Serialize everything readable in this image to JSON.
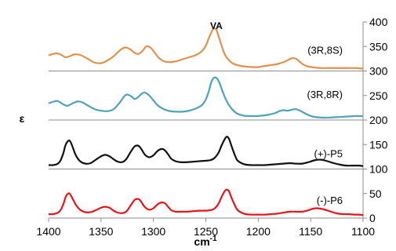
{
  "chart_data": {
    "type": "line",
    "title": "",
    "xlabel": "cm",
    "xlabel_superscript": "-1",
    "ylabel": "ε",
    "xlim": [
      1400,
      1100
    ],
    "ylim": [
      0,
      400
    ],
    "x_reversed": true,
    "x_ticks": [
      "1400",
      "1350",
      "1300",
      "1250",
      "1200",
      "1150",
      "1100"
    ],
    "y_ticks": [
      "0",
      "50",
      "100",
      "150",
      "200",
      "250",
      "300",
      "350",
      "400"
    ],
    "gridlines_y": [
      100,
      200,
      300
    ],
    "annotation": "VA",
    "annotation_x": 1240,
    "series": [
      {
        "name": "(3R,8S)",
        "color": "#e0914f",
        "x": [
          1400,
          1397,
          1392,
          1388,
          1384,
          1380,
          1375,
          1369,
          1362,
          1356,
          1350,
          1345,
          1338,
          1332,
          1327,
          1322,
          1318,
          1314,
          1310,
          1307,
          1303,
          1299,
          1295,
          1290,
          1284,
          1278,
          1272,
          1266,
          1260,
          1254,
          1250,
          1247,
          1244,
          1242,
          1240,
          1238,
          1235,
          1232,
          1228,
          1224,
          1218,
          1212,
          1206,
          1200,
          1194,
          1188,
          1182,
          1176,
          1172,
          1168,
          1164,
          1160,
          1156,
          1152,
          1146,
          1140,
          1132,
          1124,
          1116,
          1108,
          1100
        ],
        "y": [
          332,
          334,
          336,
          333,
          328,
          330,
          334,
          332,
          324,
          317,
          316,
          320,
          330,
          342,
          348,
          344,
          337,
          335,
          342,
          350,
          348,
          338,
          327,
          320,
          318,
          320,
          324,
          328,
          332,
          340,
          352,
          368,
          382,
          387,
          384,
          372,
          352,
          334,
          322,
          315,
          311,
          309,
          308,
          308,
          310,
          312,
          314,
          318,
          322,
          326,
          325,
          318,
          312,
          309,
          307,
          306,
          306,
          306,
          306,
          306,
          305
        ]
      },
      {
        "name": "(3R,8R)",
        "color": "#4fa3b8",
        "x": [
          1400,
          1396,
          1392,
          1389,
          1386,
          1382,
          1377,
          1372,
          1368,
          1362,
          1356,
          1350,
          1344,
          1338,
          1332,
          1328,
          1325,
          1321,
          1318,
          1315,
          1311,
          1308,
          1304,
          1300,
          1296,
          1290,
          1284,
          1278,
          1272,
          1266,
          1260,
          1254,
          1250,
          1247,
          1245,
          1243,
          1240,
          1237,
          1234,
          1230,
          1225,
          1220,
          1214,
          1208,
          1202,
          1196,
          1190,
          1184,
          1180,
          1176,
          1172,
          1168,
          1164,
          1160,
          1154,
          1148,
          1140,
          1132,
          1124,
          1116,
          1108,
          1104,
          1100
        ],
        "y": [
          234,
          237,
          239,
          236,
          232,
          229,
          234,
          238,
          236,
          229,
          222,
          219,
          218,
          222,
          236,
          248,
          252,
          248,
          243,
          246,
          254,
          256,
          250,
          240,
          230,
          222,
          218,
          217,
          217,
          219,
          223,
          230,
          242,
          260,
          276,
          285,
          286,
          276,
          258,
          238,
          222,
          213,
          209,
          208,
          208,
          209,
          211,
          214,
          218,
          220,
          219,
          221,
          222,
          219,
          212,
          207,
          205,
          205,
          206,
          207,
          208,
          208,
          208
        ]
      },
      {
        "name": "(+)-P5",
        "color": "#111111",
        "x": [
          1400,
          1396,
          1392,
          1389,
          1386,
          1384,
          1382,
          1380,
          1378,
          1374,
          1370,
          1365,
          1360,
          1355,
          1350,
          1346,
          1342,
          1338,
          1334,
          1330,
          1326,
          1322,
          1318,
          1315,
          1313,
          1311,
          1308,
          1304,
          1300,
          1296,
          1292,
          1289,
          1286,
          1283,
          1279,
          1274,
          1268,
          1262,
          1256,
          1250,
          1246,
          1242,
          1238,
          1235,
          1232,
          1230,
          1228,
          1226,
          1223,
          1220,
          1216,
          1212,
          1206,
          1200,
          1194,
          1188,
          1182,
          1176,
          1170,
          1164,
          1158,
          1152,
          1146,
          1140,
          1134,
          1128,
          1122,
          1116,
          1110,
          1104,
          1100
        ],
        "y": [
          108,
          108,
          110,
          116,
          132,
          148,
          156,
          158,
          150,
          128,
          116,
          111,
          112,
          119,
          126,
          129,
          126,
          120,
          115,
          114,
          120,
          134,
          146,
          148,
          145,
          139,
          129,
          124,
          128,
          137,
          141,
          138,
          130,
          121,
          116,
          114,
          114,
          115,
          116,
          117,
          118,
          122,
          133,
          148,
          161,
          166,
          162,
          150,
          132,
          118,
          112,
          109,
          108,
          108,
          108,
          109,
          110,
          111,
          112,
          111,
          111,
          114,
          118,
          119,
          116,
          112,
          109,
          107,
          107,
          107,
          106
        ]
      },
      {
        "name": "(-)-P6",
        "color": "#e8141c",
        "x": [
          1400,
          1396,
          1392,
          1389,
          1386,
          1384,
          1382,
          1380,
          1378,
          1374,
          1370,
          1365,
          1360,
          1355,
          1350,
          1346,
          1342,
          1338,
          1334,
          1330,
          1326,
          1322,
          1318,
          1315,
          1313,
          1311,
          1308,
          1304,
          1300,
          1296,
          1292,
          1289,
          1286,
          1283,
          1279,
          1274,
          1268,
          1262,
          1256,
          1250,
          1246,
          1242,
          1238,
          1235,
          1232,
          1230,
          1228,
          1226,
          1223,
          1220,
          1216,
          1212,
          1206,
          1200,
          1194,
          1188,
          1182,
          1176,
          1170,
          1164,
          1158,
          1152,
          1148,
          1144,
          1138,
          1132,
          1126,
          1120,
          1114,
          1108,
          1104,
          1100
        ],
        "y": [
          8,
          8,
          10,
          15,
          28,
          42,
          49,
          50,
          43,
          27,
          17,
          12,
          12,
          16,
          21,
          23,
          21,
          15,
          11,
          10,
          13,
          25,
          37,
          39,
          37,
          31,
          22,
          17,
          20,
          28,
          32,
          30,
          23,
          16,
          13,
          13,
          13,
          14,
          15,
          15,
          16,
          19,
          29,
          43,
          55,
          58,
          55,
          44,
          29,
          17,
          11,
          8,
          7,
          7,
          7,
          8,
          9,
          11,
          13,
          13,
          13,
          16,
          19,
          20,
          18,
          14,
          10,
          8,
          8,
          7,
          7,
          6
        ]
      }
    ],
    "series_label_positions_y": [
      343,
      253,
      132,
      37
    ]
  }
}
